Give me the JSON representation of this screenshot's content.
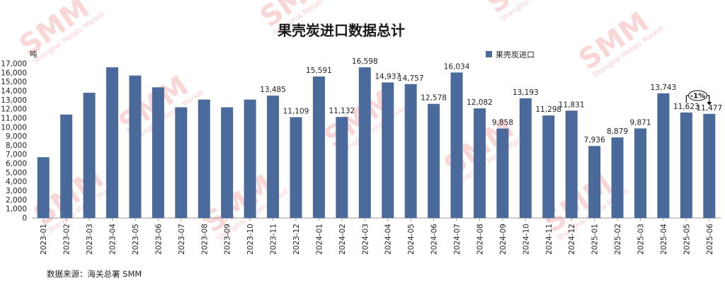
{
  "chart_data": {
    "type": "bar",
    "title": "果壳炭进口数据总计",
    "unit_label": "吨",
    "legend": [
      "果壳炭进口"
    ],
    "legend_position": "top-right",
    "bar_color": "#4a6a9b",
    "ylim": [
      0,
      17000
    ],
    "ytick_step": 1000,
    "categories": [
      "2023-01",
      "2023-02",
      "2023-03",
      "2023-04",
      "2023-05",
      "2023-06",
      "2023-07",
      "2023-08",
      "2023-09",
      "2023-10",
      "2023-11",
      "2023-12",
      "2024-01",
      "2024-02",
      "2024-03",
      "2024-04",
      "2024-05",
      "2024-06",
      "2024-07",
      "2024-08",
      "2024-09",
      "2024-10",
      "2024-11",
      "2024-12",
      "2025-01",
      "2025-02",
      "2025-03",
      "2025-04",
      "2025-05",
      "2025-06"
    ],
    "values": [
      6700,
      11400,
      13800,
      16600,
      15700,
      14400,
      12200,
      13050,
      12200,
      13050,
      13485,
      11109,
      15591,
      11132,
      16598,
      14937,
      14757,
      12578,
      16034,
      12082,
      9858,
      13193,
      11298,
      11831,
      7936,
      8879,
      9871,
      13743,
      11623,
      11477
    ],
    "data_labels": [
      "",
      "",
      "",
      "",
      "",
      "",
      "",
      "",
      "",
      "",
      "13,485",
      "11,109",
      "15,591",
      "11,132",
      "16,598",
      "14,937",
      "14,757",
      "12,578",
      "16,034",
      "12,082",
      "9,858",
      "13,193",
      "11,298",
      "11,831",
      "7,936",
      "8,879",
      "9,871",
      "13,743",
      "11,623",
      "11,477"
    ],
    "annotation": "-1%",
    "source": "数据来源：海关总署 SMM",
    "watermark": "SMM",
    "watermark_sub": "Shanghai Metals Market"
  }
}
